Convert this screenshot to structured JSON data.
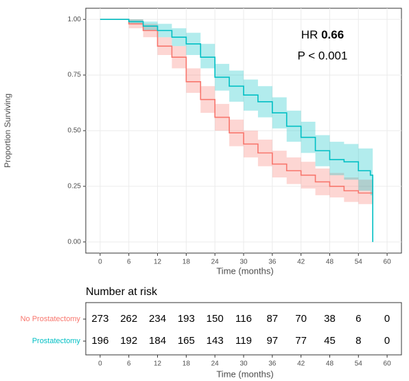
{
  "chart_data": {
    "type": "line",
    "step": true,
    "ylabel": "Proportion Surviving",
    "xlabel": "Time (months)",
    "annotation": {
      "hr_label": "HR",
      "hr_value": "0.66",
      "p_text": "P < 0.001"
    },
    "xlim": [
      -3,
      63
    ],
    "ylim": [
      -0.05,
      1.05
    ],
    "xticks": [
      0,
      6,
      12,
      18,
      24,
      30,
      36,
      42,
      48,
      54,
      60
    ],
    "yticks": [
      {
        "value": 0,
        "label": "0.00"
      },
      {
        "value": 0.25,
        "label": "0.25"
      },
      {
        "value": 0.5,
        "label": "0.50"
      },
      {
        "value": 0.75,
        "label": "0.75"
      },
      {
        "value": 1,
        "label": "1.00"
      }
    ],
    "grid": true,
    "series": [
      {
        "name": "No Prostatectomy",
        "color": "#F8766D",
        "x": [
          0,
          6,
          9,
          12,
          15,
          18,
          21,
          24,
          27,
          30,
          33,
          36,
          39,
          42,
          45,
          48,
          51,
          54,
          57
        ],
        "values": [
          1.0,
          0.98,
          0.95,
          0.88,
          0.83,
          0.72,
          0.64,
          0.56,
          0.49,
          0.44,
          0.4,
          0.35,
          0.32,
          0.3,
          0.27,
          0.25,
          0.23,
          0.22,
          0.22
        ],
        "lower": [
          1.0,
          0.96,
          0.92,
          0.84,
          0.78,
          0.67,
          0.58,
          0.5,
          0.43,
          0.38,
          0.34,
          0.29,
          0.26,
          0.24,
          0.21,
          0.2,
          0.18,
          0.17,
          0.17
        ],
        "upper": [
          1.0,
          1.0,
          0.98,
          0.92,
          0.88,
          0.78,
          0.7,
          0.62,
          0.55,
          0.5,
          0.46,
          0.41,
          0.38,
          0.36,
          0.33,
          0.31,
          0.29,
          0.28,
          0.28
        ]
      },
      {
        "name": "Prostatectomy",
        "color": "#00BFC4",
        "x": [
          0,
          6,
          9,
          12,
          15,
          18,
          21,
          24,
          27,
          30,
          33,
          36,
          39,
          42,
          45,
          48,
          51,
          54,
          56.5,
          57
        ],
        "values": [
          1.0,
          0.99,
          0.97,
          0.95,
          0.92,
          0.89,
          0.83,
          0.74,
          0.7,
          0.66,
          0.63,
          0.58,
          0.52,
          0.47,
          0.41,
          0.37,
          0.36,
          0.32,
          0.3,
          0.0
        ],
        "lower": [
          1.0,
          0.98,
          0.95,
          0.92,
          0.88,
          0.84,
          0.78,
          0.68,
          0.63,
          0.59,
          0.56,
          0.51,
          0.45,
          0.4,
          0.34,
          0.3,
          0.28,
          0.23,
          0.21,
          0.0
        ],
        "upper": [
          1.0,
          1.0,
          0.99,
          0.98,
          0.96,
          0.94,
          0.89,
          0.8,
          0.77,
          0.73,
          0.7,
          0.65,
          0.59,
          0.54,
          0.48,
          0.45,
          0.44,
          0.42,
          0.42,
          0.0
        ]
      }
    ]
  },
  "risk_table": {
    "title": "Number at risk",
    "xlabel": "Time (months)",
    "times": [
      0,
      6,
      12,
      18,
      24,
      30,
      36,
      42,
      48,
      54,
      60
    ],
    "rows": [
      {
        "name": "No Prostatectomy",
        "color": "#F8766D",
        "values": [
          273,
          262,
          234,
          193,
          150,
          116,
          87,
          70,
          38,
          6,
          0
        ]
      },
      {
        "name": "Prostatectomy",
        "color": "#00BFC4",
        "values": [
          196,
          192,
          184,
          165,
          143,
          119,
          97,
          77,
          45,
          8,
          0
        ]
      }
    ]
  }
}
